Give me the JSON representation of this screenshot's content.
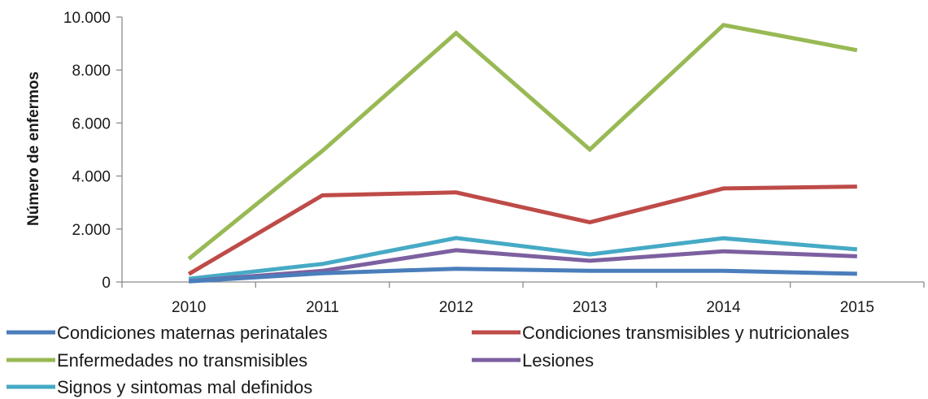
{
  "chart_data": {
    "type": "line",
    "title": "",
    "xlabel": "",
    "ylabel": "Número de enfermos",
    "ylim": [
      0,
      10000
    ],
    "yticks": [
      0,
      2000,
      4000,
      6000,
      8000,
      10000
    ],
    "ytick_labels": [
      "0",
      "2.000",
      "4.000",
      "6.000",
      "8.000",
      "10.000"
    ],
    "categories": [
      "2010",
      "2011",
      "2012",
      "2013",
      "2014",
      "2015"
    ],
    "grid": false,
    "legend_position": "bottom",
    "series": [
      {
        "name": "Condiciones maternas perinatales",
        "color": "#4a7ebb",
        "values": [
          20,
          330,
          500,
          420,
          420,
          310
        ]
      },
      {
        "name": "Condiciones transmisibles y nutricionales",
        "color": "#be4b48",
        "values": [
          300,
          3270,
          3380,
          2250,
          3530,
          3600
        ]
      },
      {
        "name": "Enfermedades no transmisibles",
        "color": "#98b954",
        "values": [
          870,
          4950,
          9400,
          5000,
          9700,
          8750
        ]
      },
      {
        "name": "Lesiones",
        "color": "#7d60a0",
        "values": [
          30,
          420,
          1200,
          800,
          1160,
          970
        ]
      },
      {
        "name": "Signos y sintomas mal definidos",
        "color": "#46aac5",
        "values": [
          120,
          680,
          1660,
          1040,
          1650,
          1230
        ]
      }
    ]
  }
}
